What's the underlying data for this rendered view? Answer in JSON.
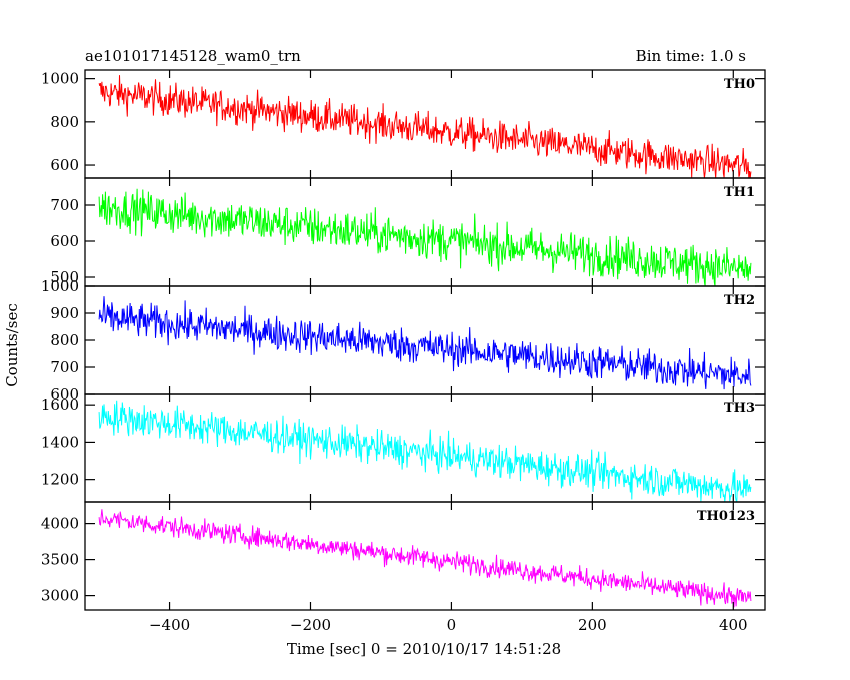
{
  "title": "ae101017145128_wam0_trn",
  "bin_time": "Bin time: 1.0 s",
  "ylabel": "Counts/sec",
  "xlabel": "Time [sec] 0 = 2010/10/17 14:51:28",
  "chart_data": {
    "type": "line",
    "grid": false,
    "xlim": [
      -520,
      445
    ],
    "x_ticks": [
      -400,
      -200,
      0,
      200,
      400
    ],
    "x_tick_labels": [
      "−400",
      "−200",
      "0",
      "200",
      "400"
    ],
    "x_range": [
      -500,
      425
    ],
    "panels": [
      {
        "name": "TH0",
        "color": "#ff0000",
        "ylim": [
          540,
          1040
        ],
        "y_ticks": [
          1000,
          800,
          600
        ],
        "y_tick_labels": [
          "1000",
          "800",
          "600"
        ],
        "start": 940,
        "end": 590,
        "noise": 38
      },
      {
        "name": "TH1",
        "color": "#00ff00",
        "ylim": [
          475,
          775
        ],
        "y_ticks": [
          700,
          600,
          500
        ],
        "y_tick_labels": [
          "700",
          "600",
          "500"
        ],
        "start": 695,
        "end": 520,
        "noise": 28
      },
      {
        "name": "TH2",
        "color": "#0000ff",
        "ylim": [
          600,
          1000
        ],
        "y_ticks": [
          1000,
          900,
          800,
          700,
          600
        ],
        "y_tick_labels": [
          "1000",
          "900",
          "800",
          "700",
          "600"
        ],
        "start": 885,
        "end": 665,
        "noise": 32
      },
      {
        "name": "TH3",
        "color": "#00ffff",
        "ylim": [
          1080,
          1660
        ],
        "y_ticks": [
          1600,
          1400,
          1200
        ],
        "y_tick_labels": [
          "1600",
          "1400",
          "1200"
        ],
        "start": 1545,
        "end": 1140,
        "noise": 45
      },
      {
        "name": "TH0123",
        "color": "#ff00ff",
        "ylim": [
          2800,
          4300
        ],
        "y_ticks": [
          4000,
          3500,
          3000
        ],
        "y_tick_labels": [
          "4000",
          "3500",
          "3000"
        ],
        "start": 4080,
        "end": 2960,
        "noise": 70
      }
    ]
  }
}
